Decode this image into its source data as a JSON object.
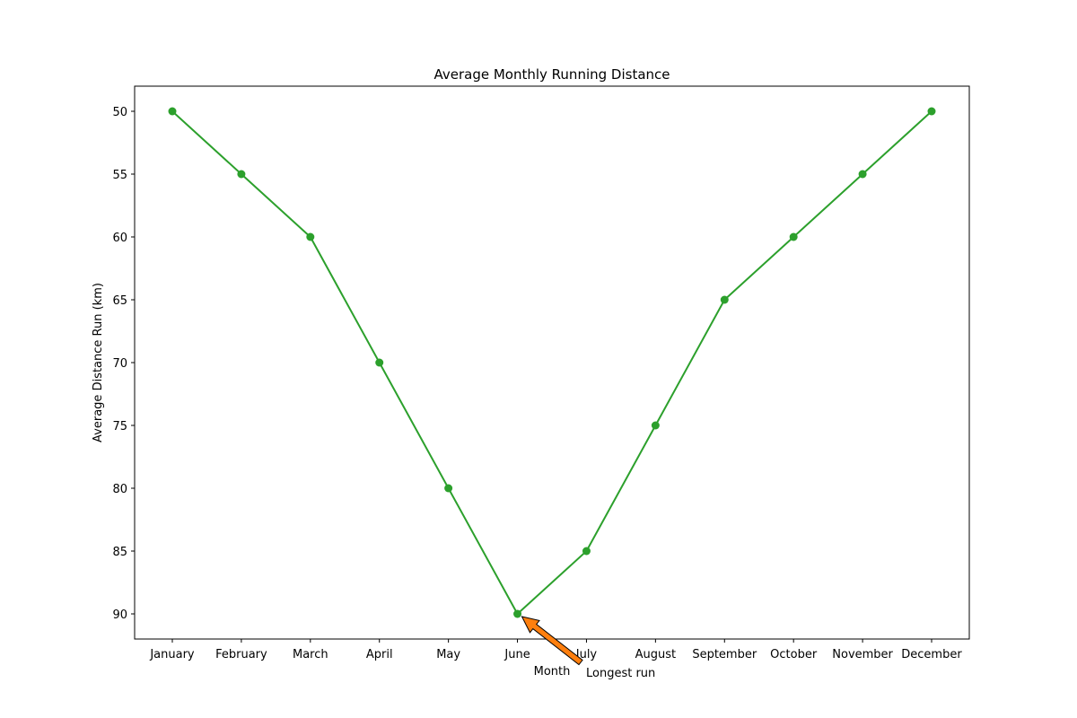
{
  "chart_data": {
    "type": "line",
    "title": "Average Monthly Running Distance",
    "xlabel": "Month",
    "ylabel": "Average Distance Run (km)",
    "categories": [
      "January",
      "February",
      "March",
      "April",
      "May",
      "June",
      "July",
      "August",
      "September",
      "October",
      "November",
      "December"
    ],
    "series": [
      {
        "values": [
          50,
          55,
          60,
          70,
          80,
          90,
          85,
          75,
          65,
          60,
          55,
          50
        ],
        "color": "#2ca02c",
        "marker": "circle"
      }
    ],
    "y_axis": {
      "inverted": true,
      "range": [
        48,
        92
      ],
      "ticks": [
        "50",
        "55",
        "60",
        "65",
        "70",
        "75",
        "80",
        "85",
        "90"
      ]
    },
    "grid": false,
    "legend": "none",
    "annotation": {
      "text": "Longest run",
      "target_category": "June",
      "target_value": 90,
      "arrow_color": "#ff7f0e"
    }
  }
}
